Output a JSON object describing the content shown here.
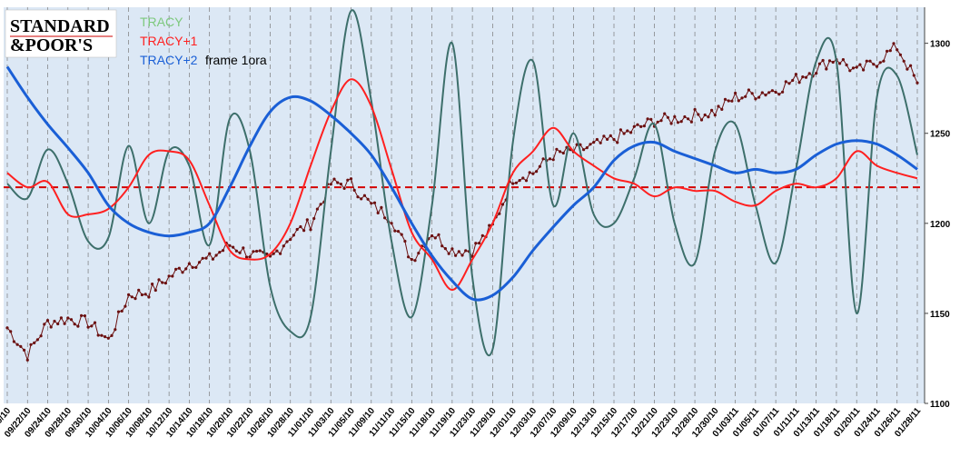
{
  "logo": {
    "line1": "STANDARD",
    "line2": "&POOR'S"
  },
  "legend": [
    {
      "label": "TRACY",
      "color": "#7dc97d"
    },
    {
      "label": "TRACY+1",
      "color": "#ff2020"
    },
    {
      "label": "TRACY+2",
      "color": "#1a5fd6"
    }
  ],
  "legend_note": "frame 1ora",
  "colors": {
    "plot_bg": "#dce8f5",
    "oscillator": "#3d6f6b",
    "price": "#6b1010",
    "reference_line": "#d40000",
    "axis_text": "#000000"
  },
  "chart_data": {
    "type": "line",
    "ylim": [
      1100,
      1320
    ],
    "yticks": [
      1100,
      1150,
      1200,
      1250,
      1300
    ],
    "reference_level": 1220,
    "x_dates": [
      "09/20/10",
      "09/22/10",
      "09/24/10",
      "09/28/10",
      "09/30/10",
      "10/04/10",
      "10/06/10",
      "10/08/10",
      "10/12/10",
      "10/14/10",
      "10/18/10",
      "10/20/10",
      "10/22/10",
      "10/26/10",
      "10/28/10",
      "11/01/10",
      "11/03/10",
      "11/05/10",
      "11/09/10",
      "11/11/10",
      "11/15/10",
      "11/18/10",
      "11/19/10",
      "11/23/10",
      "11/29/10",
      "12/01/10",
      "12/03/10",
      "12/07/10",
      "12/09/10",
      "12/13/10",
      "12/15/10",
      "12/17/10",
      "12/21/10",
      "12/23/10",
      "12/28/10",
      "12/30/10",
      "01/03/11",
      "01/05/11",
      "01/07/11",
      "01/11/11",
      "01/13/11",
      "01/18/11",
      "01/20/11",
      "01/24/11",
      "01/26/11",
      "01/28/11"
    ],
    "series": [
      {
        "key": "price",
        "values": [
          1142,
          1127,
          1145,
          1147,
          1145,
          1135,
          1160,
          1162,
          1170,
          1178,
          1180,
          1188,
          1183,
          1180,
          1193,
          1200,
          1222,
          1222,
          1210,
          1203,
          1180,
          1195,
          1185,
          1185,
          1198,
          1225,
          1228,
          1238,
          1240,
          1243,
          1247,
          1252,
          1257,
          1258,
          1260,
          1262,
          1270,
          1272,
          1274,
          1280,
          1286,
          1292,
          1284,
          1290,
          1298,
          1278
        ]
      },
      {
        "key": "oscillator",
        "values": [
          1222,
          1214,
          1241,
          1222,
          1190,
          1192,
          1243,
          1200,
          1240,
          1232,
          1188,
          1258,
          1240,
          1165,
          1140,
          1148,
          1240,
          1318,
          1268,
          1190,
          1148,
          1210,
          1300,
          1170,
          1130,
          1245,
          1290,
          1210,
          1250,
          1205,
          1200,
          1225,
          1255,
          1200,
          1178,
          1240,
          1255,
          1210,
          1178,
          1230,
          1290,
          1290,
          1150,
          1270,
          1282,
          1238
        ]
      },
      {
        "name": "TRACY+1",
        "values": [
          1228,
          1220,
          1223,
          1205,
          1205,
          1208,
          1220,
          1238,
          1240,
          1235,
          1210,
          1185,
          1180,
          1183,
          1200,
          1232,
          1262,
          1280,
          1265,
          1230,
          1195,
          1180,
          1163,
          1180,
          1200,
          1228,
          1240,
          1253,
          1240,
          1232,
          1225,
          1222,
          1215,
          1220,
          1218,
          1218,
          1212,
          1210,
          1218,
          1222,
          1220,
          1225,
          1240,
          1232,
          1228,
          1225
        ]
      },
      {
        "name": "TRACY+2",
        "values": [
          1287,
          1270,
          1255,
          1242,
          1228,
          1210,
          1200,
          1195,
          1193,
          1195,
          1200,
          1220,
          1243,
          1262,
          1270,
          1268,
          1260,
          1250,
          1238,
          1220,
          1200,
          1182,
          1168,
          1158,
          1160,
          1170,
          1185,
          1198,
          1210,
          1220,
          1235,
          1243,
          1245,
          1240,
          1236,
          1232,
          1228,
          1230,
          1228,
          1230,
          1238,
          1244,
          1246,
          1244,
          1238,
          1230
        ]
      }
    ]
  }
}
